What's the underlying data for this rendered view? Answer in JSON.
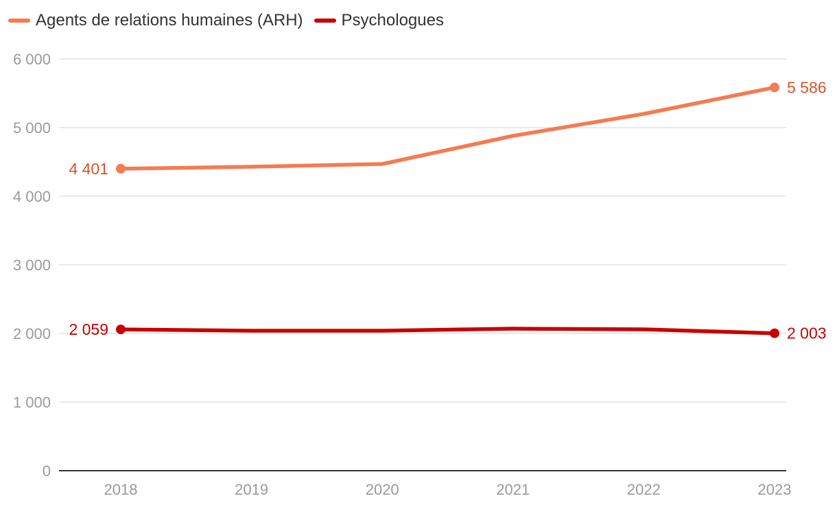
{
  "chart_data": {
    "type": "line",
    "title": "",
    "xlabel": "",
    "ylabel": "",
    "categories": [
      "2018",
      "2019",
      "2020",
      "2021",
      "2022",
      "2023"
    ],
    "ylim": [
      0,
      6000
    ],
    "yticks": [
      0,
      1000,
      2000,
      3000,
      4000,
      5000,
      6000
    ],
    "ytick_labels": [
      "0",
      "1 000",
      "2 000",
      "3 000",
      "4 000",
      "5 000",
      "6 000"
    ],
    "grid": true,
    "legend_position": "top-left",
    "series": [
      {
        "name": "Agents de relations humaines (ARH)",
        "color": "#F47B52",
        "label_color": "#D9522B",
        "values": [
          4401,
          4430,
          4470,
          4880,
          5200,
          5586
        ],
        "first_label": "4 401",
        "last_label": "5 586"
      },
      {
        "name": "Psychologues",
        "color": "#C80000",
        "label_color": "#C80000",
        "values": [
          2059,
          2040,
          2040,
          2070,
          2060,
          2003
        ],
        "first_label": "2 059",
        "last_label": "2 003"
      }
    ]
  }
}
